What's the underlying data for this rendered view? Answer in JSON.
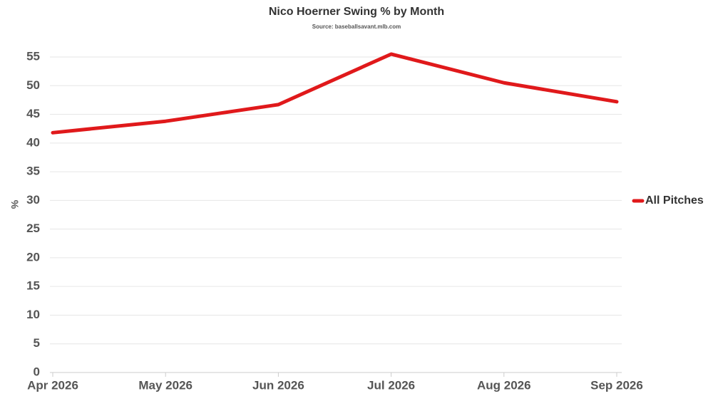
{
  "chart_data": {
    "type": "line",
    "title": "Nico Hoerner Swing % by Month",
    "subtitle": "Source: baseballsavant.mlb.com",
    "y_label": "%",
    "categories": [
      "Apr 2026",
      "May 2026",
      "Jun 2026",
      "Jul 2026",
      "Aug 2026",
      "Sep 2026"
    ],
    "series": [
      {
        "name": "All Pitches",
        "color": "#e0191b",
        "values": [
          41.8,
          43.8,
          46.7,
          55.5,
          50.5,
          47.2
        ]
      }
    ],
    "ylim": [
      0,
      55
    ],
    "yticks": [
      0,
      5,
      10,
      15,
      20,
      25,
      30,
      35,
      40,
      45,
      50,
      55
    ],
    "grid": true,
    "legend": "right"
  }
}
